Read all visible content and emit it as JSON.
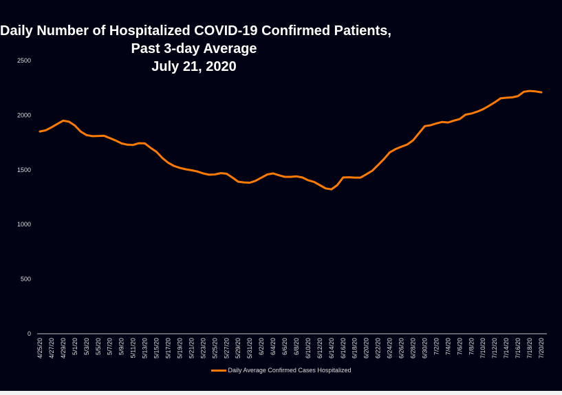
{
  "chart_data": {
    "type": "line",
    "title": [
      "Daily Number of Hospitalized COVID-19 Confirmed Patients,",
      "Past 3-day Average",
      "July 21, 2020"
    ],
    "xlabel": "",
    "ylabel": "",
    "ylim": [
      0,
      2500
    ],
    "yticks": [
      0,
      500,
      1000,
      1500,
      2000,
      2500
    ],
    "grid": false,
    "legend_position": "bottom",
    "categories": [
      "4/25/20",
      "4/26/20",
      "4/27/20",
      "4/28/20",
      "4/29/20",
      "4/30/20",
      "5/1/20",
      "5/2/20",
      "5/3/20",
      "5/4/20",
      "5/5/20",
      "5/6/20",
      "5/7/20",
      "5/8/20",
      "5/9/20",
      "5/10/20",
      "5/11/20",
      "5/12/20",
      "5/13/20",
      "5/14/20",
      "5/15/20",
      "5/16/20",
      "5/17/20",
      "5/18/20",
      "5/19/20",
      "5/20/20",
      "5/21/20",
      "5/22/20",
      "5/23/20",
      "5/24/20",
      "5/25/20",
      "5/26/20",
      "5/27/20",
      "5/28/20",
      "5/29/20",
      "5/30/20",
      "5/31/20",
      "6/1/20",
      "6/2/20",
      "6/3/20",
      "6/4/20",
      "6/5/20",
      "6/6/20",
      "6/7/20",
      "6/8/20",
      "6/9/20",
      "6/10/20",
      "6/11/20",
      "6/12/20",
      "6/13/20",
      "6/14/20",
      "6/15/20",
      "6/16/20",
      "6/17/20",
      "6/18/20",
      "6/19/20",
      "6/20/20",
      "6/21/20",
      "6/22/20",
      "6/23/20",
      "6/24/20",
      "6/25/20",
      "6/26/20",
      "6/27/20",
      "6/28/20",
      "6/29/20",
      "6/30/20",
      "7/1/20",
      "7/2/20",
      "7/3/20",
      "7/4/20",
      "7/5/20",
      "7/6/20",
      "7/7/20",
      "7/8/20",
      "7/9/20",
      "7/10/20",
      "7/11/20",
      "7/12/20",
      "7/13/20",
      "7/14/20",
      "7/15/20",
      "7/16/20",
      "7/17/20",
      "7/18/20",
      "7/19/20",
      "7/20/20"
    ],
    "tick_every": 2,
    "series": [
      {
        "name": "Daily Average Confirmed Cases Hospitalized",
        "color": "#ff7a00",
        "values": [
          1851,
          1862,
          1890,
          1920,
          1950,
          1940,
          1905,
          1850,
          1818,
          1808,
          1810,
          1812,
          1790,
          1768,
          1742,
          1730,
          1728,
          1744,
          1742,
          1700,
          1665,
          1608,
          1565,
          1535,
          1518,
          1505,
          1496,
          1485,
          1467,
          1455,
          1458,
          1470,
          1465,
          1430,
          1392,
          1385,
          1382,
          1400,
          1429,
          1458,
          1467,
          1450,
          1436,
          1436,
          1440,
          1430,
          1405,
          1390,
          1360,
          1330,
          1322,
          1360,
          1430,
          1432,
          1429,
          1429,
          1460,
          1492,
          1545,
          1598,
          1660,
          1690,
          1712,
          1732,
          1770,
          1835,
          1900,
          1908,
          1925,
          1938,
          1933,
          1950,
          1965,
          2005,
          2015,
          2033,
          2055,
          2085,
          2118,
          2154,
          2160,
          2163,
          2175,
          2215,
          2222,
          2218,
          2210
        ]
      }
    ]
  }
}
